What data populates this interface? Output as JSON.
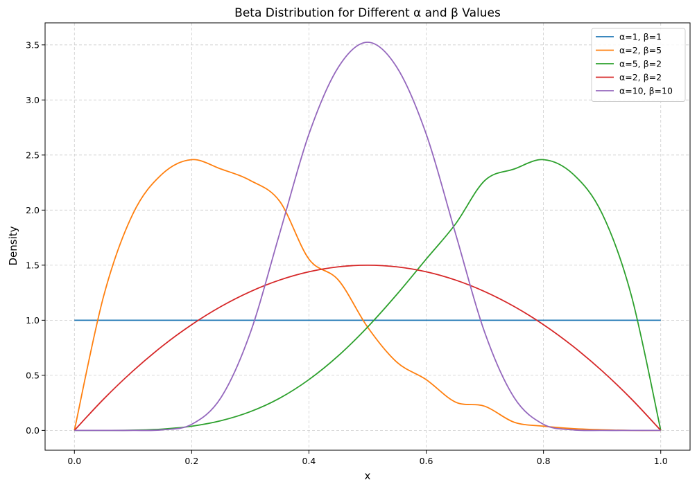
{
  "chart_data": {
    "type": "line",
    "title": "Beta Distribution for Different α and β Values",
    "xlabel": "x",
    "ylabel": "Density",
    "xlim": [
      -0.05,
      1.05
    ],
    "ylim": [
      -0.18,
      3.7
    ],
    "xticks": [
      0.0,
      0.2,
      0.4,
      0.6,
      0.8,
      1.0
    ],
    "xtick_labels": [
      "0.0",
      "0.2",
      "0.4",
      "0.6",
      "0.8",
      "1.0"
    ],
    "yticks": [
      0.0,
      0.5,
      1.0,
      1.5,
      2.0,
      2.5,
      3.0,
      3.5
    ],
    "ytick_labels": [
      "0.0",
      "0.5",
      "1.0",
      "1.5",
      "2.0",
      "2.5",
      "3.0",
      "3.5"
    ],
    "grid": true,
    "grid_style": "dashed",
    "legend_position": "top-right",
    "x": [
      0.0,
      0.05,
      0.1,
      0.15,
      0.2,
      0.25,
      0.3,
      0.35,
      0.4,
      0.45,
      0.5,
      0.55,
      0.6,
      0.65,
      0.7,
      0.75,
      0.8,
      0.85,
      0.9,
      0.95,
      1.0
    ],
    "series": [
      {
        "name": "α=1, β=1",
        "color": "#1f77b4",
        "values": [
          1.0,
          1.0,
          1.0,
          1.0,
          1.0,
          1.0,
          1.0,
          1.0,
          1.0,
          1.0,
          1.0,
          1.0,
          1.0,
          1.0,
          1.0,
          1.0,
          1.0,
          1.0,
          1.0,
          1.0,
          1.0
        ]
      },
      {
        "name": "α=2, β=5",
        "color": "#ff7f0e",
        "values": [
          0.0,
          1.222,
          1.968,
          2.329,
          2.458,
          2.373,
          2.269,
          2.081,
          1.555,
          1.366,
          0.938,
          0.619,
          0.461,
          0.257,
          0.219,
          0.074,
          0.038,
          0.016,
          0.005,
          0.0,
          0.0
        ]
      },
      {
        "name": "α=5, β=2",
        "color": "#2ca02c",
        "values": [
          0.0,
          0.0,
          0.002,
          0.012,
          0.038,
          0.088,
          0.17,
          0.292,
          0.461,
          0.677,
          0.938,
          1.235,
          1.555,
          1.874,
          2.269,
          2.373,
          2.458,
          2.329,
          1.968,
          1.222,
          0.0
        ]
      },
      {
        "name": "α=2, β=2",
        "color": "#d62728",
        "values": [
          0.0,
          0.285,
          0.54,
          0.765,
          0.96,
          1.125,
          1.26,
          1.365,
          1.44,
          1.485,
          1.5,
          1.485,
          1.44,
          1.365,
          1.26,
          1.125,
          0.96,
          0.765,
          0.54,
          0.285,
          0.0
        ]
      },
      {
        "name": "α=10, β=10",
        "color": "#9467bd",
        "values": [
          0.0,
          0.0,
          0.0,
          0.005,
          0.055,
          0.298,
          0.886,
          1.787,
          2.69,
          3.296,
          3.524,
          3.296,
          2.69,
          1.787,
          0.886,
          0.298,
          0.055,
          0.005,
          0.0,
          0.0,
          0.0
        ]
      }
    ]
  }
}
